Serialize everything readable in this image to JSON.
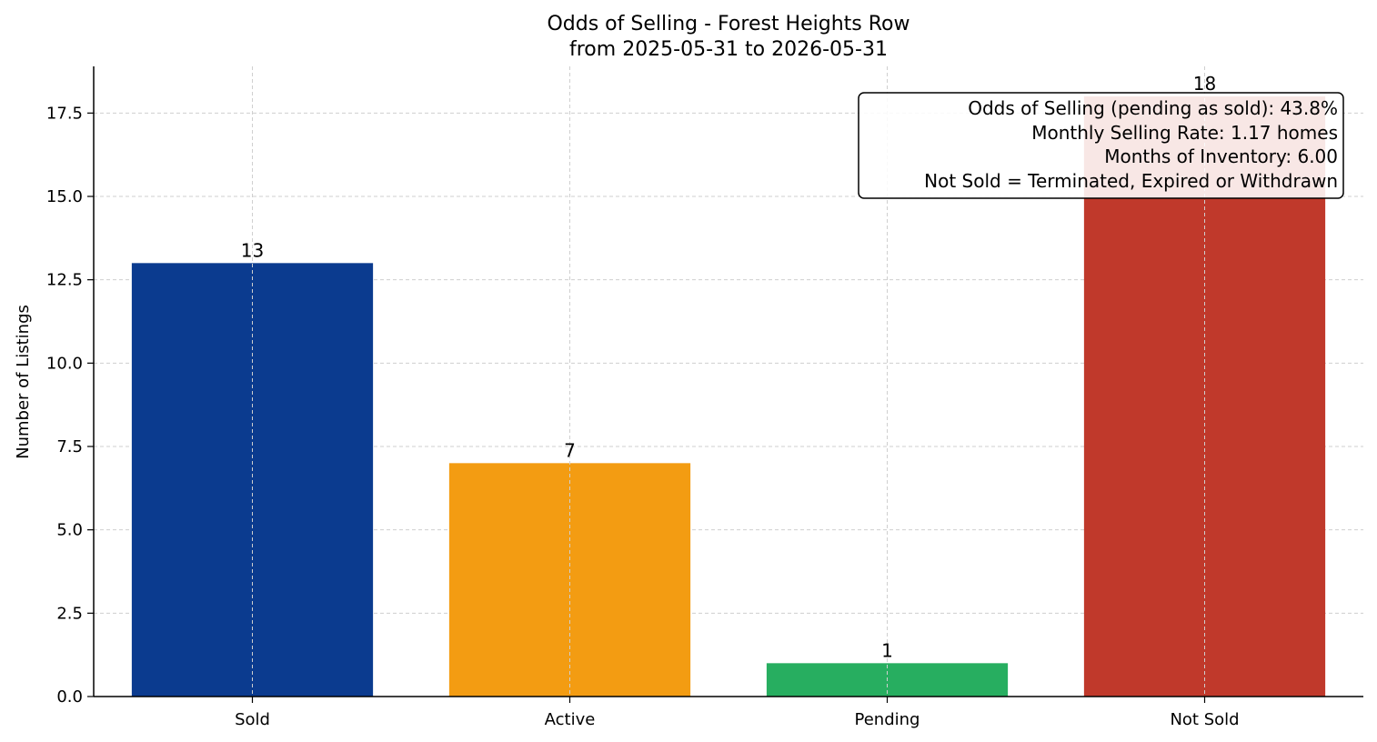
{
  "chart_data": {
    "type": "bar",
    "title": "Odds of Selling - Forest Heights Row",
    "subtitle": "from 2025-05-31 to 2026-05-31",
    "xlabel": "",
    "ylabel": "Number of Listings",
    "categories": [
      "Sold",
      "Active",
      "Pending",
      "Not Sold"
    ],
    "values": [
      13,
      7,
      1,
      18
    ],
    "colors": [
      "#0b3b8f",
      "#f39c12",
      "#27ae60",
      "#c0392b"
    ],
    "ylim": [
      0,
      18.9
    ],
    "yticks": [
      0,
      2.5,
      5,
      7.5,
      10,
      12.5,
      15,
      17.5
    ],
    "ytick_labels": [
      "0.0",
      "2.5",
      "5.0",
      "7.5",
      "10.0",
      "12.5",
      "15.0",
      "17.5"
    ],
    "grid": true,
    "info_box": {
      "position": "top-right",
      "lines": [
        "Odds of Selling (pending as sold): 43.8%",
        "Monthly Selling Rate: 1.17 homes",
        "Months of Inventory: 6.00",
        "Not Sold = Terminated, Expired or Withdrawn"
      ]
    }
  }
}
